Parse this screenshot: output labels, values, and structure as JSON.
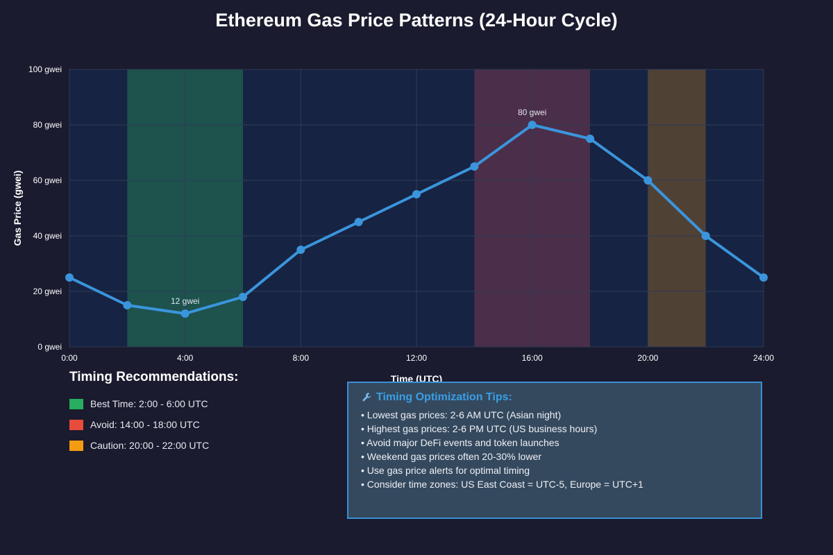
{
  "chart_data": {
    "type": "line",
    "title": "Ethereum Gas Price Patterns (24-Hour Cycle)",
    "xlabel": "Time (UTC)",
    "ylabel": "Gas Price (gwei)",
    "xlim": [
      0,
      24
    ],
    "ylim": [
      0,
      100
    ],
    "x_ticks": [
      "0:00",
      "4:00",
      "8:00",
      "12:00",
      "16:00",
      "20:00",
      "24:00"
    ],
    "x_tick_values": [
      0,
      4,
      8,
      12,
      16,
      20,
      24
    ],
    "y_ticks": [
      "0 gwei",
      "20 gwei",
      "40 gwei",
      "60 gwei",
      "80 gwei",
      "100 gwei"
    ],
    "y_tick_values": [
      0,
      20,
      40,
      60,
      80,
      100
    ],
    "grid": true,
    "series": [
      {
        "x": [
          0,
          2,
          4,
          6,
          8,
          10,
          12,
          14,
          16,
          18,
          20,
          22,
          24
        ],
        "y": [
          25,
          15,
          12,
          18,
          35,
          45,
          55,
          65,
          80,
          75,
          60,
          40,
          25
        ],
        "color": "#3a95dc"
      }
    ],
    "bands": [
      {
        "from": 2,
        "to": 6,
        "color": "#1f5a4f"
      },
      {
        "from": 14,
        "to": 18,
        "color": "#55304a"
      },
      {
        "from": 20,
        "to": 22,
        "color": "#5a4632"
      }
    ],
    "annotations": [
      {
        "x": 4,
        "y": 12,
        "text": "12 gwei"
      },
      {
        "x": 16,
        "y": 80,
        "text": "80 gwei"
      }
    ]
  },
  "recommendations": {
    "heading": "Timing Recommendations:",
    "items": [
      {
        "label": "Best Time: 2:00 - 6:00 UTC",
        "color": "#27ae60"
      },
      {
        "label": "Avoid: 14:00 - 18:00 UTC",
        "color": "#e74c3c"
      },
      {
        "label": "Caution: 20:00 - 22:00 UTC",
        "color": "#f39c12"
      }
    ]
  },
  "tips": {
    "heading": "Timing Optimization Tips:",
    "icon": "wrench-icon",
    "items": [
      "• Lowest gas prices: 2-6 AM UTC (Asian night)",
      "• Highest gas prices: 2-6 PM UTC (US business hours)",
      "• Avoid major DeFi events and token launches",
      "• Weekend gas prices often 20-30% lower",
      "• Use gas price alerts for optimal timing",
      "• Consider time zones: US East Coast = UTC-5, Europe = UTC+1"
    ]
  }
}
